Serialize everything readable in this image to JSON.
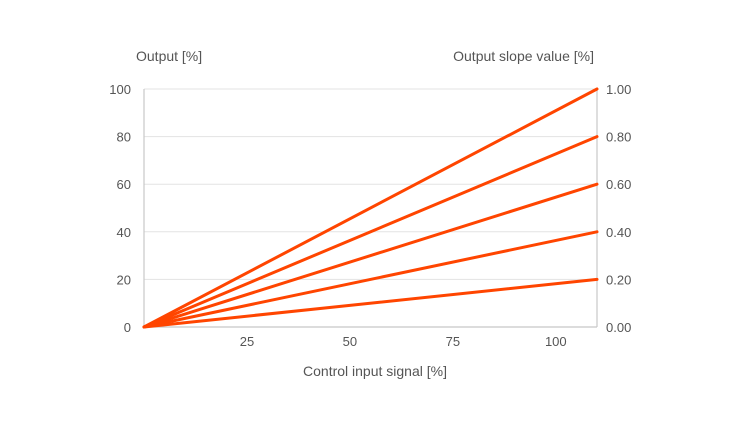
{
  "chart_data": {
    "type": "line",
    "title": "",
    "ylabel_left": "Output [%]",
    "ylabel_right": "Output slope value [%]",
    "xlabel": "Control input signal [%]",
    "xlim": [
      0,
      110
    ],
    "ylim": [
      0,
      100
    ],
    "ylim_right": [
      0,
      1
    ],
    "x_ticks": [
      0,
      25,
      50,
      75,
      100
    ],
    "x_tick_labels": [
      "",
      "25",
      "50",
      "75",
      "100"
    ],
    "y_ticks": [
      0,
      20,
      40,
      60,
      80,
      100
    ],
    "y_tick_labels": [
      "0",
      "20",
      "40",
      "60",
      "80",
      "100"
    ],
    "y_right_ticks": [
      0,
      0.2,
      0.4,
      0.6,
      0.8,
      1.0
    ],
    "y_right_tick_labels": [
      "0.00",
      "0.20",
      "0.40",
      "0.60",
      "0.80",
      "1.00"
    ],
    "grid": true,
    "line_color": "#ff4500",
    "grid_color": "#e3e3e3",
    "axis_color": "#c8c8c8",
    "series": [
      {
        "x": [
          0,
          110
        ],
        "values": [
          0,
          100
        ]
      },
      {
        "x": [
          0,
          110
        ],
        "values": [
          0,
          80
        ]
      },
      {
        "x": [
          0,
          110
        ],
        "values": [
          0,
          60
        ]
      },
      {
        "x": [
          0,
          110
        ],
        "values": [
          0,
          40
        ]
      },
      {
        "x": [
          0,
          110
        ],
        "values": [
          0,
          20
        ]
      }
    ]
  }
}
